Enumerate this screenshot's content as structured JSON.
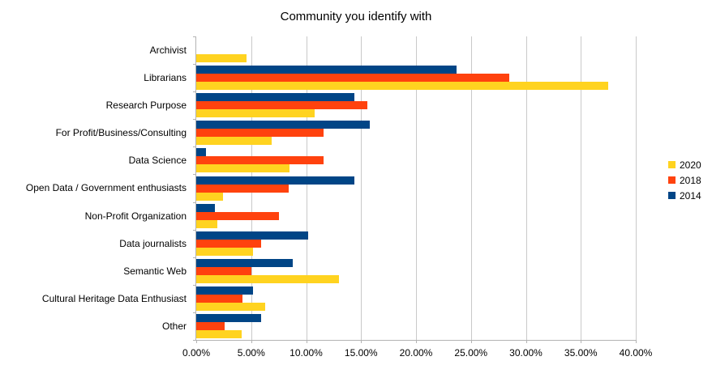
{
  "title": "Community you identify with",
  "chart_data": {
    "type": "bar",
    "orientation": "horizontal",
    "title": "Community you identify with",
    "xlabel": "",
    "ylabel": "",
    "xlim": [
      0,
      40
    ],
    "grid": true,
    "legend_position": "right",
    "bar_order_top_to_bottom": [
      "2014",
      "2018",
      "2020"
    ],
    "x_ticks": [
      "0.00%",
      "5.00%",
      "10.00%",
      "15.00%",
      "20.00%",
      "25.00%",
      "30.00%",
      "35.00%",
      "40.00%"
    ],
    "categories": [
      "Archivist",
      "Librarians",
      "Research Purpose",
      "For Profit/Business/Consulting",
      "Data Science",
      "Open Data / Government enthusiasts",
      "Non-Profit Organization",
      "Data journalists",
      "Semantic Web",
      "Cultural Heritage Data Enthusiast",
      "Other"
    ],
    "series": [
      {
        "name": "2020",
        "color": "#FFD320",
        "values": [
          4.6,
          37.5,
          10.8,
          6.9,
          8.5,
          2.4,
          1.9,
          5.2,
          13.0,
          6.3,
          4.1
        ]
      },
      {
        "name": "2018",
        "color": "#FF420E",
        "values": [
          0,
          28.5,
          15.6,
          11.6,
          11.6,
          8.4,
          7.5,
          5.9,
          5.0,
          4.2,
          2.6
        ]
      },
      {
        "name": "2014",
        "color": "#004586",
        "values": [
          0,
          23.7,
          14.4,
          15.8,
          0.9,
          14.4,
          1.7,
          10.2,
          8.8,
          5.2,
          5.9
        ]
      }
    ]
  },
  "colors": {
    "gridline": "#c9c9c9",
    "axis": "#b3b3b3",
    "background": "#ffffff",
    "text": "#000000"
  }
}
